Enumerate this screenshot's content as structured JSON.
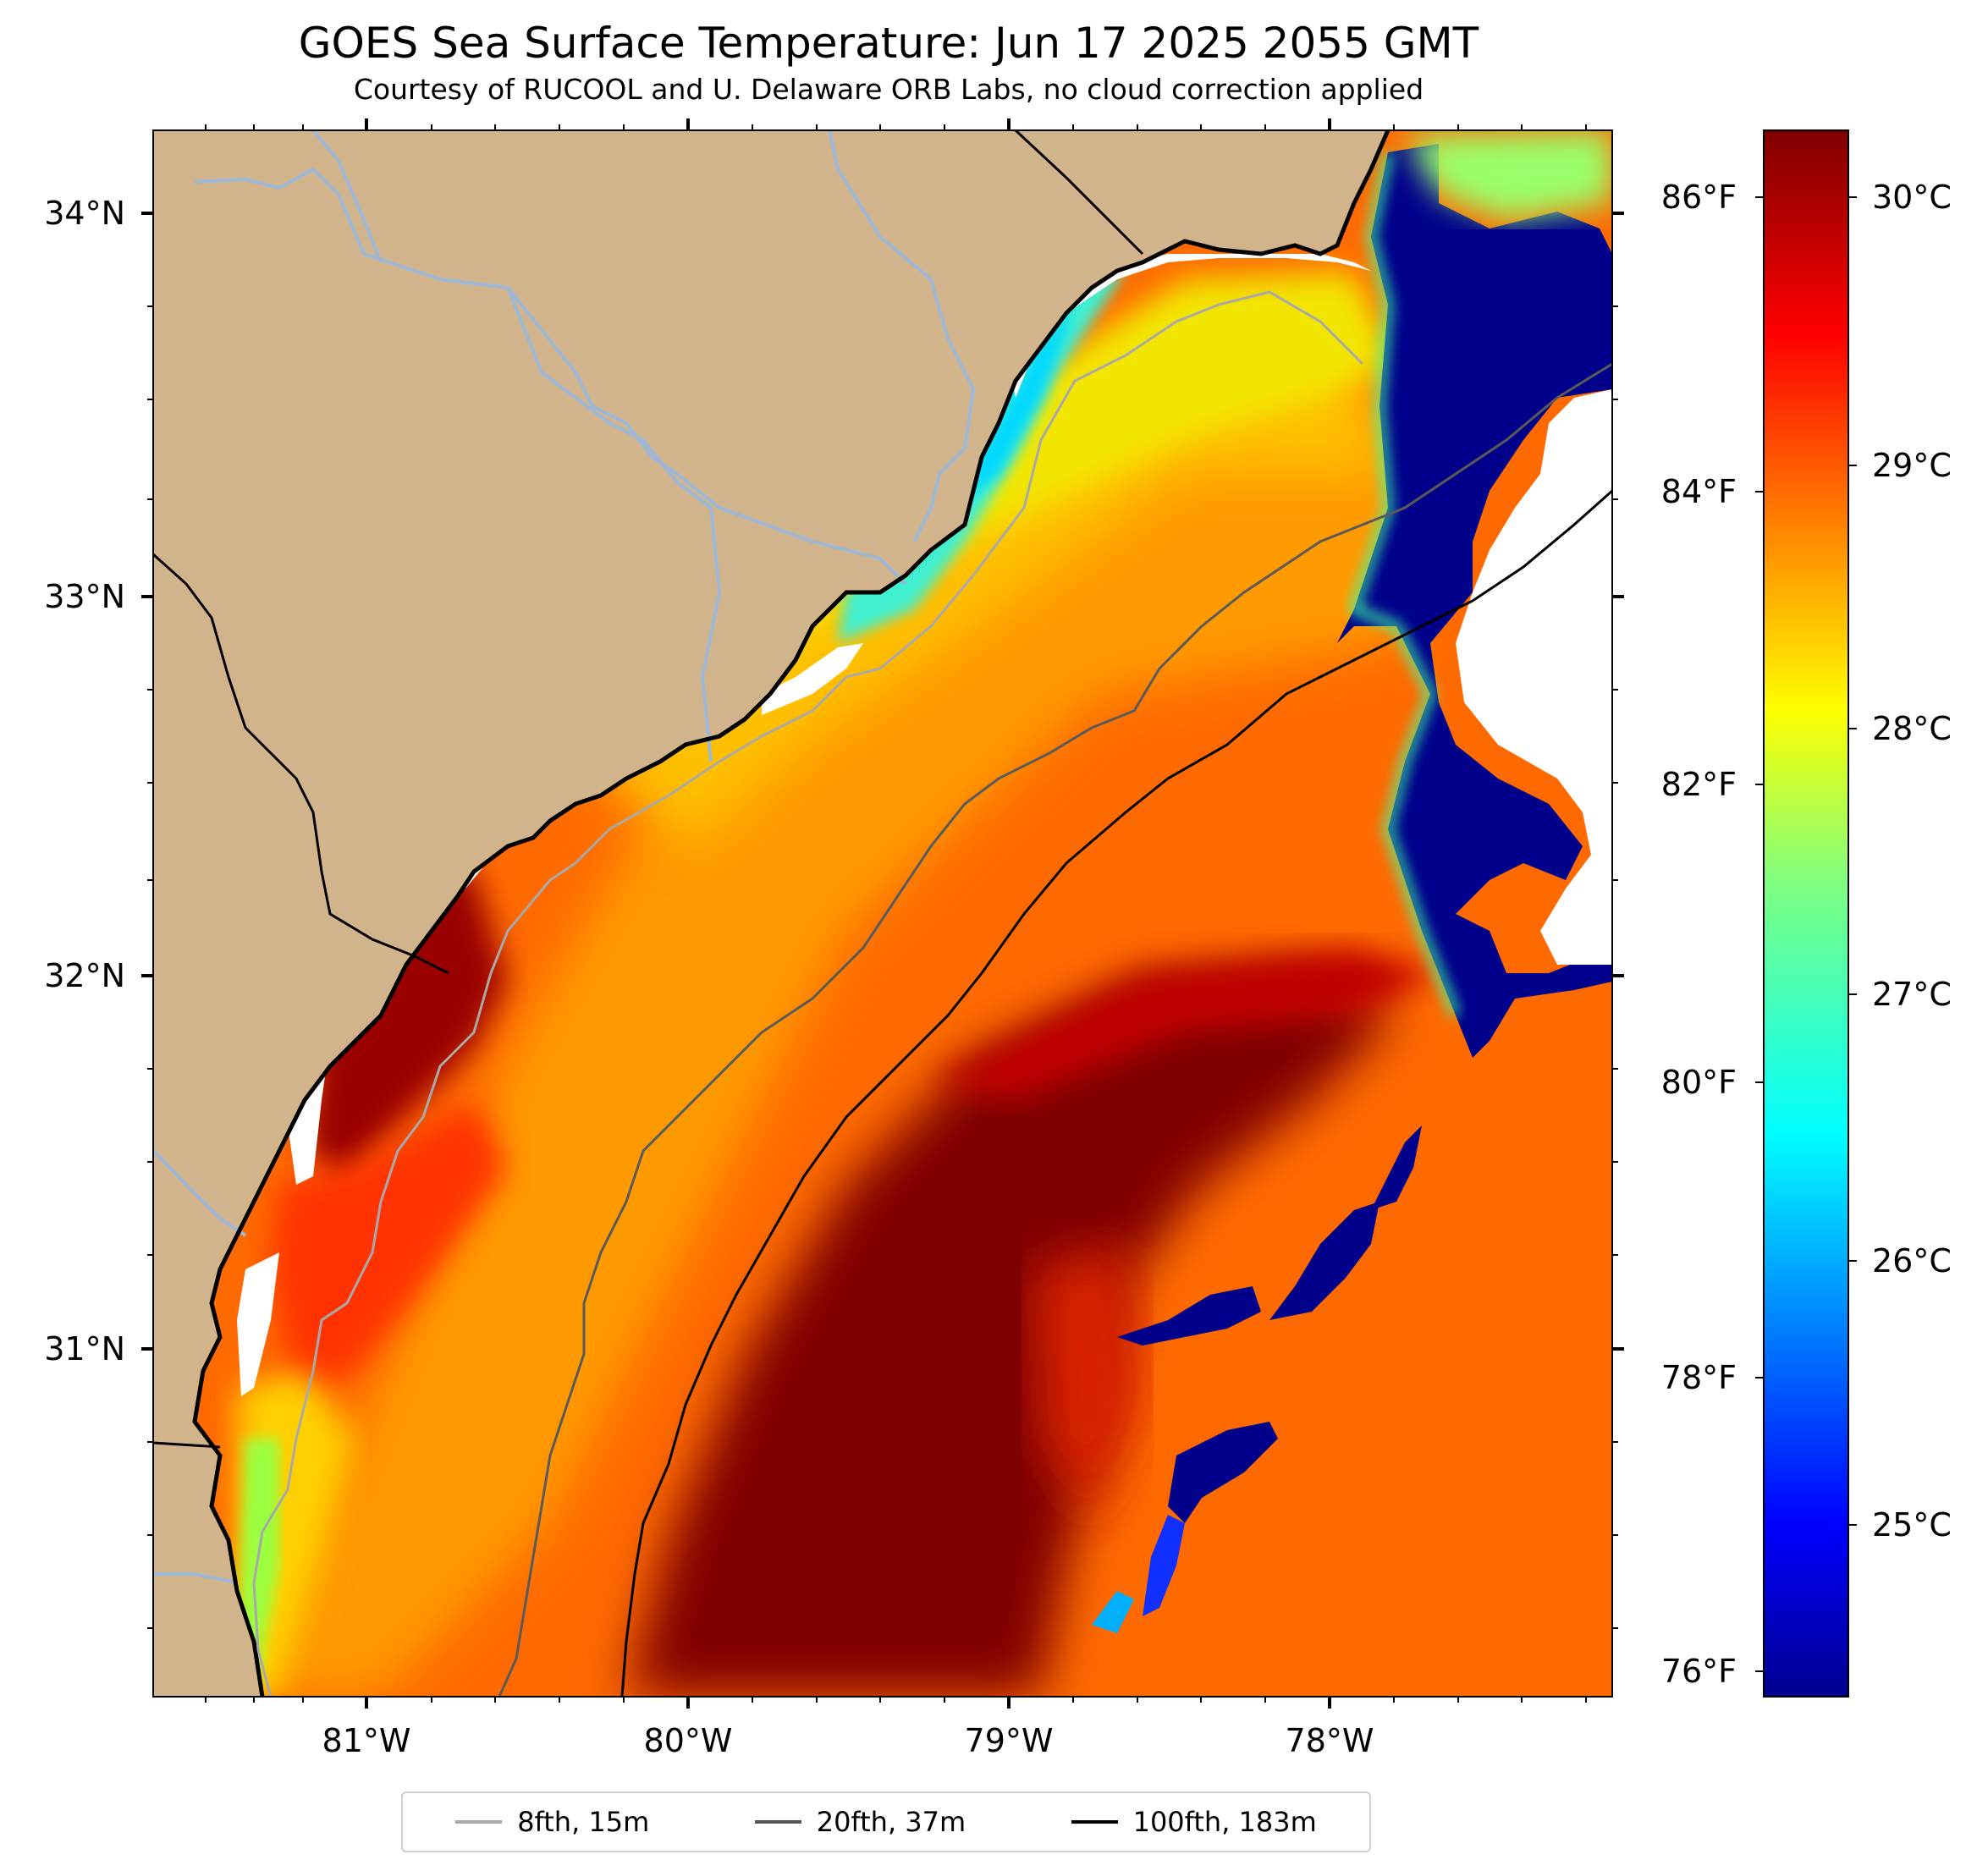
{
  "title": "GOES Sea Surface Temperature: Jun 17 2025 2055 GMT",
  "subtitle": "Courtesy of RUCOOL and U. Delaware ORB Labs, no cloud correction applied",
  "lat_labels": [
    "34°N",
    "33°N",
    "32°N",
    "31°N"
  ],
  "lon_labels": [
    "81°W",
    "80°W",
    "79°W",
    "78°W"
  ],
  "colorbar": {
    "fahrenheit_labels": [
      "86°F",
      "84°F",
      "82°F",
      "80°F",
      "78°F",
      "76°F"
    ],
    "celsius_labels": [
      "30°C",
      "29°C",
      "28°C",
      "27°C",
      "26°C",
      "25°C"
    ],
    "colormap": "jet",
    "range_celsius": [
      24.4,
      30.2
    ]
  },
  "legend": [
    {
      "label": "8fth, 15m",
      "color": "#a9a9a9"
    },
    {
      "label": "20fth, 37m",
      "color": "#555555"
    },
    {
      "label": "100fth, 183m",
      "color": "#000000"
    }
  ],
  "colors": {
    "land": "#d2b48c",
    "rivers": "#9db7d6",
    "no_data": "#ffffff",
    "cold": "#00008b",
    "warm": "#7f0000"
  }
}
